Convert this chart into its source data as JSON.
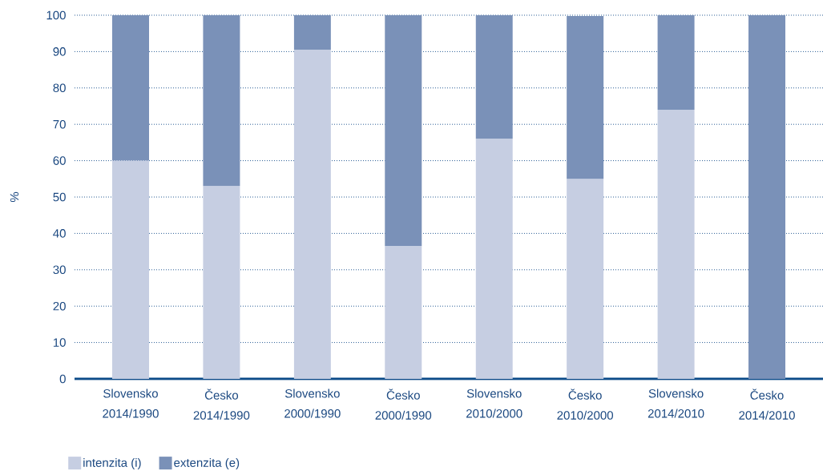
{
  "chart_data": {
    "type": "bar",
    "stacked": true,
    "ylabel": "%",
    "categories": [
      "Slovensko 2014/1990",
      "Česko 2014/1990",
      "Slovensko 2000/1990",
      "Česko 2000/1990",
      "Slovensko 2010/2000",
      "Česko 2010/2000",
      "Slovensko 2014/2010",
      "Česko 2014/2010"
    ],
    "series": [
      {
        "name": "intenzita (i)",
        "color": "#c6cee2",
        "values": [
          60,
          53,
          90.5,
          36.5,
          66,
          55,
          74,
          null
        ]
      },
      {
        "name": "extenzita (e)",
        "color": "#7a91b8",
        "values": [
          40,
          47,
          9.5,
          63.5,
          34,
          44.8,
          26,
          100
        ]
      }
    ],
    "ylim": [
      0,
      100
    ],
    "yticks": [
      0,
      10,
      20,
      30,
      40,
      50,
      60,
      70,
      80,
      90,
      100
    ],
    "grid": "y",
    "legend": "bottom left"
  }
}
